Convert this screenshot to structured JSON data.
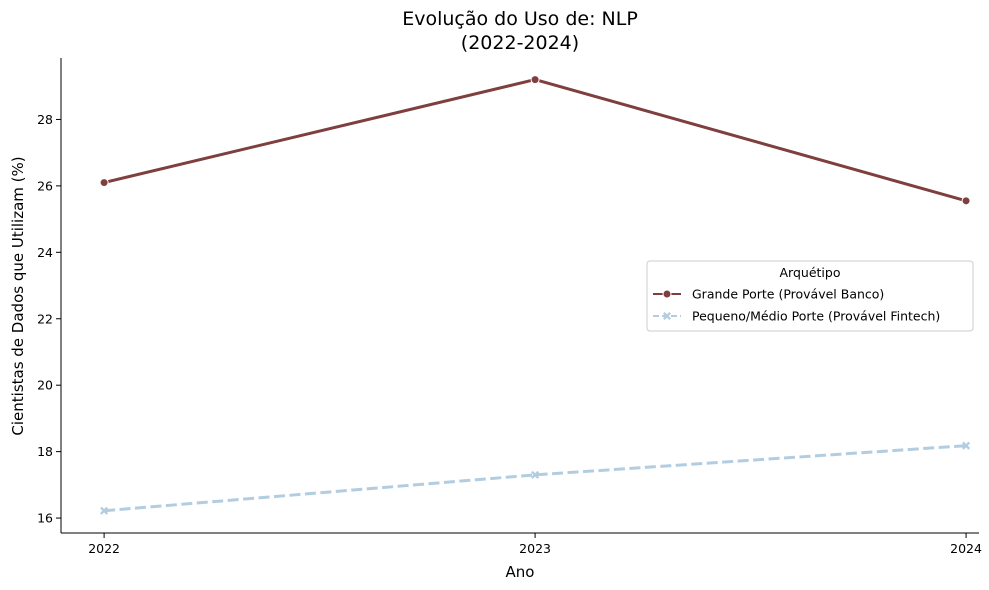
{
  "chart_data": {
    "type": "line",
    "title_line1": "Evolução do Uso de: NLP",
    "title_line2": "(2022-2024)",
    "xlabel": "Ano",
    "ylabel": "Cientistas de Dados que Utilizam (%)",
    "x": [
      2022,
      2023,
      2024
    ],
    "x_tick_labels": [
      "2022",
      "2023",
      "2024"
    ],
    "y_ticks": [
      16,
      18,
      20,
      22,
      24,
      26,
      28
    ],
    "y_tick_labels": [
      "16",
      "18",
      "20",
      "22",
      "24",
      "26",
      "28"
    ],
    "ylim": [
      15.55,
      29.85
    ],
    "xlim": [
      2021.9,
      2024.03
    ],
    "grid": false,
    "legend": {
      "title": "Arquétipo",
      "placement": "center-right"
    },
    "series": [
      {
        "name": "Grande Porte (Provável Banco)",
        "values": [
          26.1,
          29.2,
          25.55
        ],
        "color": "#7f3f3f",
        "dash": "solid",
        "marker": "circle"
      },
      {
        "name": "Pequeno/Médio Porte (Provável Fintech)",
        "values": [
          16.22,
          17.3,
          18.18
        ],
        "color": "#b3cde0",
        "dash": "dashed",
        "marker": "x"
      }
    ]
  }
}
